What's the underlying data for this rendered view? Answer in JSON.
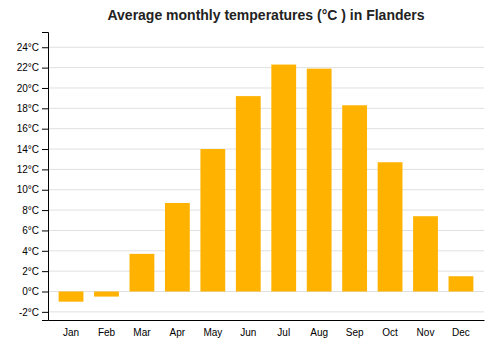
{
  "chart_data": {
    "type": "bar",
    "title": "Average monthly temperatures (°C ) in Flanders",
    "categories": [
      "Jan",
      "Feb",
      "Mar",
      "Apr",
      "May",
      "Jun",
      "Jul",
      "Aug",
      "Sep",
      "Oct",
      "Nov",
      "Dec"
    ],
    "values": [
      -1.0,
      -0.5,
      3.7,
      8.7,
      14.0,
      19.2,
      22.3,
      21.9,
      18.3,
      12.7,
      7.4,
      1.5
    ],
    "color": "#FFB300",
    "ylim": [
      -2.8,
      25.5
    ],
    "yticks": [
      {
        "value": -2,
        "label": "-2°C"
      },
      {
        "value": 0,
        "label": "0°C"
      },
      {
        "value": 2,
        "label": "2°C"
      },
      {
        "value": 4,
        "label": "4°C"
      },
      {
        "value": 6,
        "label": "6°C"
      },
      {
        "value": 8,
        "label": "8°C"
      },
      {
        "value": 10,
        "label": "10°C"
      },
      {
        "value": 12,
        "label": "12°C"
      },
      {
        "value": 14,
        "label": "14°C"
      },
      {
        "value": 16,
        "label": "16°C"
      },
      {
        "value": 18,
        "label": "18°C"
      },
      {
        "value": 20,
        "label": "20°C"
      },
      {
        "value": 22,
        "label": "22°C"
      },
      {
        "value": 24,
        "label": "24°C"
      }
    ],
    "grid": true
  }
}
